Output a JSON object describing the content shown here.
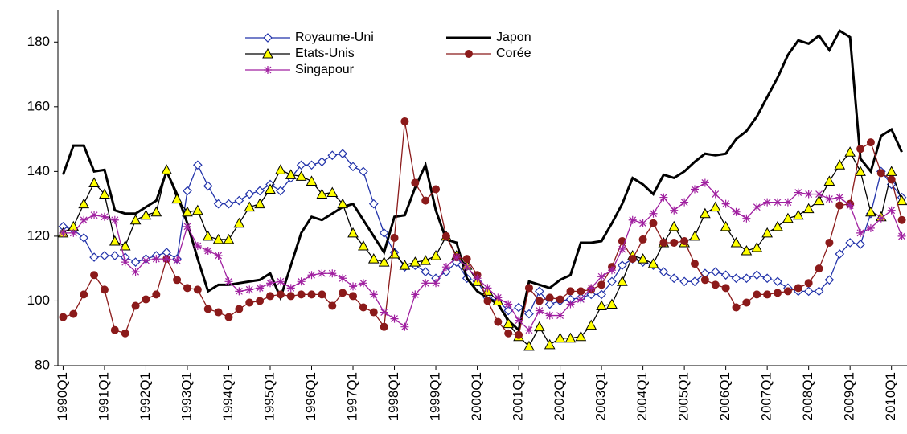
{
  "chart_data": {
    "type": "line",
    "categories": [
      "1990Q1",
      null,
      null,
      null,
      "1991Q1",
      null,
      null,
      null,
      "1992Q1",
      null,
      null,
      null,
      "1993Q1",
      null,
      null,
      null,
      "1994Q1",
      null,
      null,
      null,
      "1995Q1",
      null,
      null,
      null,
      "1996Q1",
      null,
      null,
      null,
      "1997Q1",
      null,
      null,
      null,
      "1998Q1",
      null,
      null,
      null,
      "1999Q1",
      null,
      null,
      null,
      "2000Q1",
      null,
      null,
      null,
      "2001Q1",
      null,
      null,
      null,
      "2002Q1",
      null,
      null,
      null,
      "2003Q1",
      null,
      null,
      null,
      "2004Q1",
      null,
      null,
      null,
      "2005Q1",
      null,
      null,
      null,
      "2006Q1",
      null,
      null,
      null,
      "2007Q1",
      null,
      null,
      null,
      "2008Q1",
      null,
      null,
      null,
      "2009Q1",
      null,
      null,
      null,
      "2010Q1",
      null
    ],
    "ylim": [
      80,
      190
    ],
    "yticks": [
      80,
      100,
      120,
      140,
      160,
      180
    ],
    "grid": false,
    "legend": "top",
    "series": [
      {
        "name": "Royaume-Uni",
        "color": "#2233aa",
        "marker": "diamond",
        "width": 1.3,
        "values": [
          123,
          122,
          119.5,
          113.5,
          114,
          114,
          113.5,
          112,
          113,
          114,
          115,
          113,
          134,
          142,
          135.5,
          130,
          130,
          131,
          133,
          134,
          136,
          134,
          138,
          142,
          142,
          143,
          145,
          145.5,
          141.5,
          140,
          130,
          121,
          115,
          110.5,
          111,
          109,
          107,
          109,
          112,
          107,
          106,
          101,
          100,
          97,
          98,
          96,
          103,
          99,
          100,
          100.5,
          101,
          102,
          102,
          106,
          111,
          113,
          112,
          111,
          109,
          107,
          106,
          106,
          108.5,
          109,
          108,
          107,
          107,
          108,
          107,
          106,
          104,
          103,
          103,
          103,
          106.5,
          114.5,
          118,
          117.5,
          127,
          140,
          136,
          132
        ]
      },
      {
        "name": "Japon",
        "color": "#000000",
        "marker": "none",
        "width": 3,
        "values": [
          139,
          148,
          148,
          140,
          140.5,
          128,
          127,
          127,
          129,
          131,
          140,
          133,
          124,
          113,
          103,
          105,
          105,
          105.5,
          106,
          106.5,
          108.5,
          101,
          111,
          121,
          126,
          125,
          127,
          129,
          130,
          125,
          120,
          115,
          126,
          126.5,
          135,
          142,
          128,
          119,
          118,
          107,
          103,
          101,
          99,
          94,
          91,
          106,
          105,
          104,
          106.5,
          108,
          118,
          118,
          118.5,
          124,
          130,
          138,
          136,
          133,
          139,
          138,
          140,
          143,
          145.5,
          145,
          145.5,
          150,
          152.5,
          157,
          163,
          169,
          176,
          180.5,
          179.5,
          182,
          177.5,
          183.5,
          181.5,
          144,
          140,
          151,
          153,
          146
        ]
      },
      {
        "name": "Etats-Unis",
        "color": "#000000",
        "marker": "triangle",
        "width": 1.3,
        "values": [
          121,
          123,
          130,
          136.5,
          133,
          118.5,
          117,
          125,
          126.5,
          127.5,
          140.5,
          131.5,
          127.5,
          128,
          120,
          119,
          119,
          124,
          129,
          130,
          134.5,
          140.5,
          139,
          138.5,
          137,
          133,
          133.5,
          130,
          121,
          117,
          113,
          112,
          114.5,
          111,
          112,
          112.5,
          114,
          120,
          114,
          111,
          106,
          103,
          100,
          93,
          89,
          86,
          92,
          86.5,
          88.5,
          88.5,
          89,
          92.5,
          98.5,
          99,
          106,
          114,
          113,
          111.5,
          118,
          123,
          118,
          120,
          127,
          129,
          123,
          118,
          115.5,
          116.5,
          121,
          123,
          125.5,
          126.5,
          128.5,
          131,
          137,
          142,
          146,
          140,
          127.5,
          126,
          140,
          131
        ]
      },
      {
        "name": "Corée",
        "color": "#8b1a1a",
        "marker": "circle",
        "width": 1.3,
        "values": [
          95,
          96,
          102,
          108,
          103.5,
          91,
          90,
          98.5,
          100.5,
          102,
          113,
          106.5,
          104,
          103.5,
          97.5,
          96.5,
          95,
          97.5,
          99.5,
          100,
          101.5,
          102,
          101.5,
          102,
          102,
          102,
          98.5,
          102.5,
          101.5,
          98,
          96.5,
          92,
          119.5,
          155.5,
          136.5,
          131,
          134.5,
          120,
          113.5,
          113,
          108,
          100,
          93.5,
          90,
          89.5,
          104,
          100,
          101,
          100.5,
          103,
          103,
          103.5,
          105,
          110.5,
          118.5,
          113,
          119,
          124,
          118,
          118,
          118.5,
          111.5,
          106.5,
          105,
          104,
          98,
          99.5,
          102,
          102,
          102.5,
          103,
          104,
          105.5,
          110,
          118,
          129.5,
          130,
          147,
          149,
          139.5,
          137.5,
          125
        ]
      },
      {
        "name": "Singapour",
        "color": "#a020a0",
        "marker": "star",
        "width": 1.3,
        "values": [
          121,
          121,
          125,
          126.5,
          126,
          125,
          112,
          109,
          112.5,
          113,
          113,
          112.5,
          123,
          117,
          115.5,
          114,
          106,
          103,
          103.5,
          104,
          105.5,
          106,
          104,
          106,
          108,
          108.5,
          108.5,
          107,
          104.5,
          105.5,
          102,
          96.5,
          94.5,
          92,
          102,
          105.5,
          105.5,
          110.5,
          113.5,
          110.5,
          107,
          104,
          101,
          99,
          94,
          91,
          97,
          95.5,
          95.5,
          99,
          100.5,
          104,
          107.5,
          109.5,
          116,
          125,
          124,
          127,
          132,
          128,
          130.5,
          134.5,
          136.5,
          133,
          130,
          127.5,
          125.5,
          129,
          130.5,
          130.5,
          130.5,
          133.5,
          133,
          133,
          131.5,
          132,
          129.5,
          121,
          122.5,
          125.5,
          128,
          120
        ]
      }
    ]
  }
}
